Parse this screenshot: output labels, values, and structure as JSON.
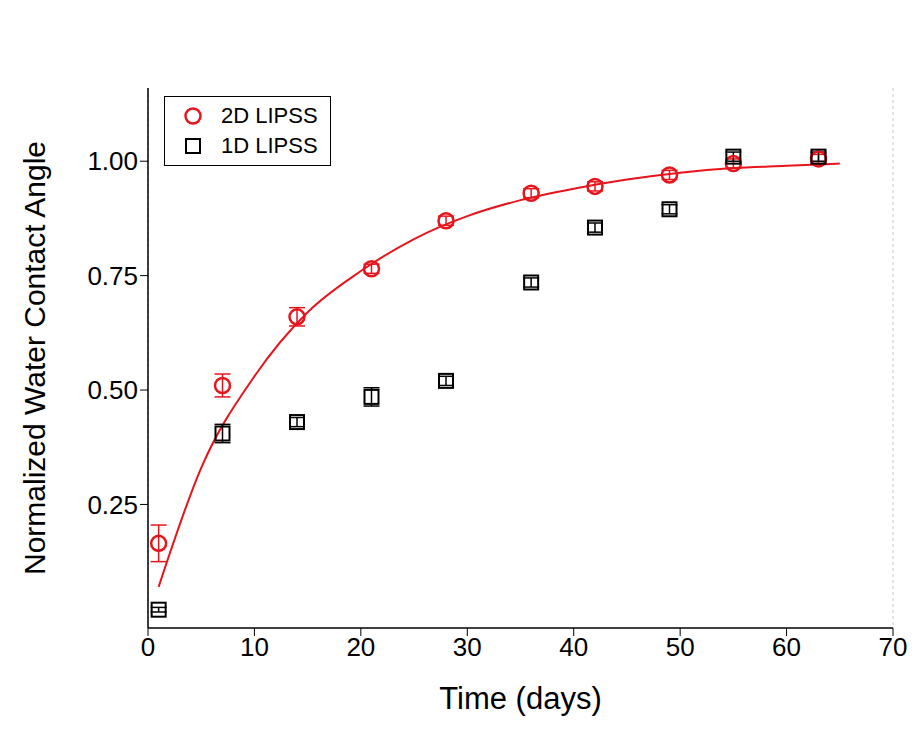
{
  "chart_data": {
    "type": "scatter",
    "x_label": "Time (days)",
    "y_label": "Normalized Water Contact Angle",
    "x": [
      1,
      7,
      14,
      21,
      28,
      36,
      42,
      49,
      55,
      63
    ],
    "series": [
      {
        "name": "2D LIPSS",
        "color": "#e8141b",
        "marker": "circle",
        "values": [
          0.165,
          0.51,
          0.66,
          0.765,
          0.87,
          0.93,
          0.945,
          0.97,
          0.995,
          1.005
        ],
        "errors": [
          0.04,
          0.025,
          0.02,
          0.01,
          0.01,
          0.01,
          0.01,
          0.01,
          0.01,
          0.01
        ]
      },
      {
        "name": "1D LIPSS",
        "color": "#000000",
        "marker": "square",
        "values": [
          0.02,
          0.405,
          0.43,
          0.485,
          0.52,
          0.735,
          0.855,
          0.895,
          1.01,
          1.01
        ],
        "errors": [
          0.005,
          0.02,
          0.01,
          0.02,
          0.01,
          0.01,
          0.01,
          0.01,
          0.01,
          0.01
        ]
      }
    ],
    "fit_curve": {
      "color": "#e8141b",
      "line_style": "solid",
      "x": [
        1,
        5,
        10,
        15,
        20,
        25,
        30,
        35,
        40,
        45,
        50,
        55,
        60,
        65
      ],
      "values": [
        0.07,
        0.33,
        0.53,
        0.67,
        0.76,
        0.83,
        0.88,
        0.915,
        0.94,
        0.96,
        0.975,
        0.985,
        0.99,
        0.995
      ]
    },
    "xlim": [
      0,
      70
    ],
    "xticks": [
      0,
      10,
      20,
      30,
      40,
      50,
      60,
      70
    ],
    "ylim": [
      -0.02,
      1.16
    ],
    "yticks": [
      0.25,
      {
        "value": 0.5,
        "label": "0.50"
      },
      0.75,
      {
        "value": 1,
        "label": "1.00"
      }
    ],
    "grid": true,
    "legend": "upper left"
  }
}
